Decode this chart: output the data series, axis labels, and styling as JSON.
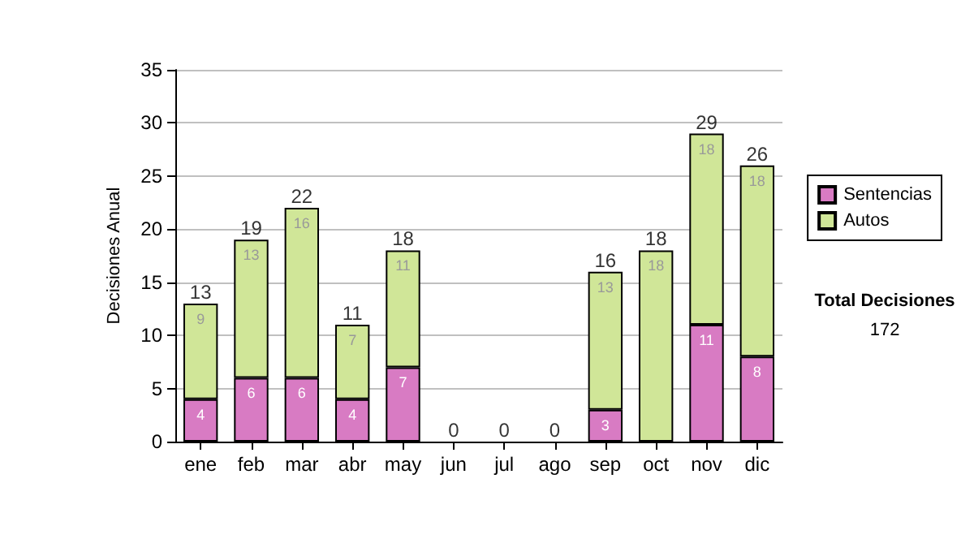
{
  "chart_data": {
    "type": "bar",
    "stacked": true,
    "ylabel": "Decisiones Anual",
    "categories": [
      "ene",
      "feb",
      "mar",
      "abr",
      "may",
      "jun",
      "jul",
      "ago",
      "sep",
      "oct",
      "nov",
      "dic"
    ],
    "series": [
      {
        "name": "Sentencias",
        "color": "#d87bc3",
        "values": [
          4,
          6,
          6,
          4,
          7,
          0,
          0,
          0,
          3,
          0,
          11,
          8
        ],
        "value_labels": [
          "4",
          "6",
          "6",
          "4",
          "7",
          null,
          null,
          null,
          "3",
          null,
          "11",
          "8"
        ]
      },
      {
        "name": "Autos",
        "color": "#d0e698",
        "values": [
          9,
          13,
          16,
          7,
          11,
          0,
          0,
          0,
          13,
          18,
          18,
          18
        ],
        "value_labels": [
          "9",
          "13",
          "16",
          "7",
          "11",
          null,
          null,
          null,
          "13",
          "18",
          "18",
          "18"
        ]
      }
    ],
    "totals": [
      "13",
      "19",
      "22",
      "11",
      "18",
      "0",
      "0",
      "0",
      "16",
      "18",
      "29",
      "26"
    ],
    "ylim": [
      0,
      35
    ],
    "yticks": [
      0,
      5,
      10,
      15,
      20,
      25,
      30,
      35
    ],
    "grid": "y",
    "legend": "right",
    "annotations": [
      "Total Decisiones",
      "172"
    ]
  }
}
